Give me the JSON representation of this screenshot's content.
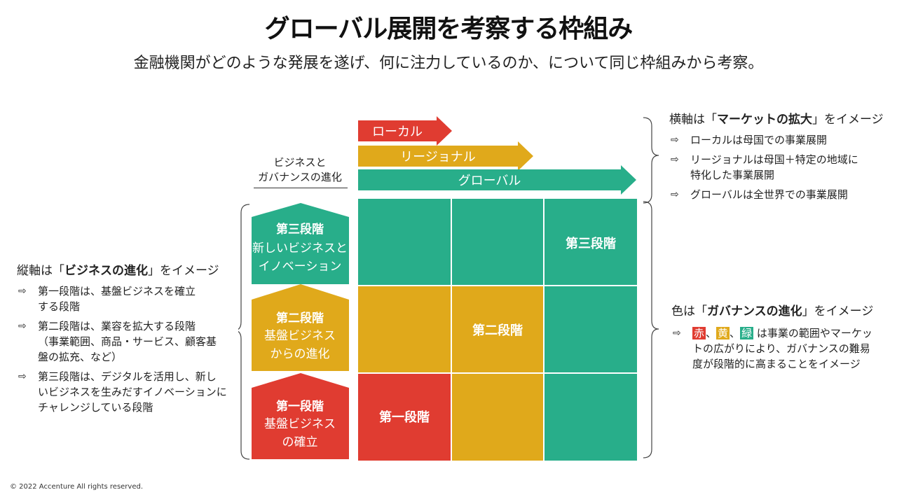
{
  "title": "グローバル展開を考察する枠組み",
  "subtitle": "金融機関がどのような発展を遂げ、何に注力しているのか、について同じ枠組みから考察。",
  "colors": {
    "red": "#e03c31",
    "yellow": "#e0a91b",
    "green": "#28ae8a"
  },
  "axis_label_line1": "ビジネスと",
  "axis_label_line2": "ガバナンスの進化",
  "arrows": {
    "local": "ローカル",
    "regional": "リージョナル",
    "global": "グローバル"
  },
  "stages": [
    {
      "name": "第三段階",
      "desc1": "新しいビジネスと",
      "desc2": "イノベーション"
    },
    {
      "name": "第二段階",
      "desc1": "基盤ビジネス",
      "desc2": "からの進化"
    },
    {
      "name": "第一段階",
      "desc1": "基盤ビジネス",
      "desc2": "の確立"
    }
  ],
  "grid_labels": {
    "stage3": "第三段階",
    "stage2": "第二段階",
    "stage1": "第一段階"
  },
  "left_panel": {
    "heading_prefix": "縦軸は「",
    "heading_bold": "ビジネスの進化",
    "heading_suffix": "」をイメージ",
    "bullet_marker": "⇨",
    "bullets": [
      {
        "l1": "第一段階は、基盤ビジネスを確立",
        "l2": "する段階",
        "l3": ""
      },
      {
        "l1": "第二段階は、業容を拡大する段階",
        "l2": "（事業範囲、商品・サービス、顧客基",
        "l3": "盤の拡充、など）"
      },
      {
        "l1": "第三段階は、デジタルを活用し、新し",
        "l2": "いビジネスを生みだすイノベーションに",
        "l3": "チャレンジしている段階"
      }
    ]
  },
  "right_top": {
    "heading_prefix": "横軸は「",
    "heading_bold": "マーケットの拡大",
    "heading_suffix": "」をイメージ",
    "bullets": [
      {
        "l1": "ローカルは母国での事業展開",
        "l2": ""
      },
      {
        "l1": "リージョナルは母国＋特定の地域に",
        "l2": "特化した事業展開"
      },
      {
        "l1": "グローバルは全世界での事業展開",
        "l2": ""
      }
    ]
  },
  "right_bottom": {
    "heading_prefix": "色は「",
    "heading_bold": "ガバナンスの進化",
    "heading_suffix": "」をイメージ",
    "chip_red": "赤",
    "chip_yellow": "黄",
    "chip_green": "緑",
    "sep": "、",
    "text_l1": "は事業の範囲やマーケッ",
    "text_l2": "トの広がりにより、ガバナンスの難易",
    "text_l3": "度が段階的に高まることをイメージ"
  },
  "copyright": "© 2022 Accenture  All rights reserved."
}
